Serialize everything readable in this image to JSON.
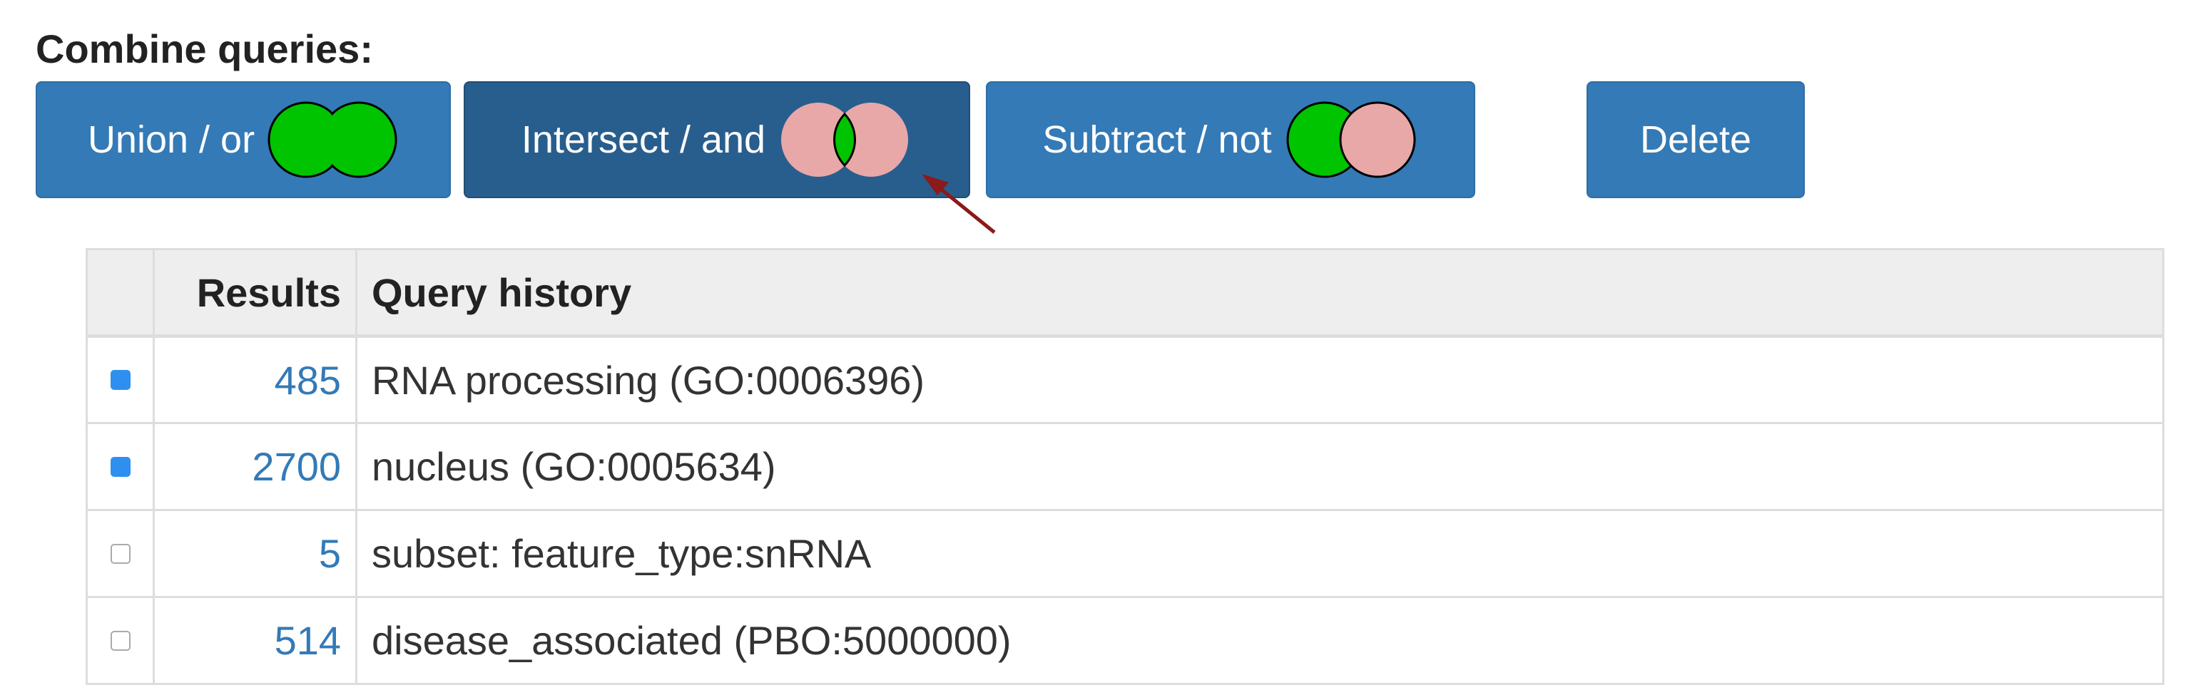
{
  "header": {
    "title": "Combine queries:"
  },
  "buttons": [
    "Union / or",
    "Intersect / and",
    "Subtract / not",
    "Delete"
  ],
  "table": {
    "columns": [
      "",
      "Results",
      "Query history"
    ],
    "rows": [
      {
        "checked": true,
        "results": 485,
        "query": "RNA processing (GO:0006396)"
      },
      {
        "checked": true,
        "results": 2700,
        "query": "nucleus (GO:0005634)"
      },
      {
        "checked": false,
        "results": 5,
        "query": "subset: feature_type:snRNA"
      },
      {
        "checked": false,
        "results": 514,
        "query": "disease_associated (PBO:5000000)"
      }
    ]
  }
}
